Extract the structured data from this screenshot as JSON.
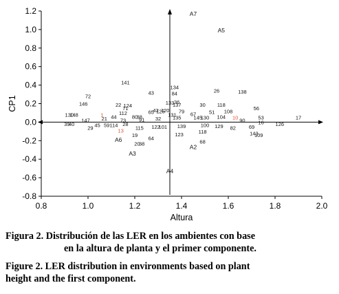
{
  "chart_data": {
    "type": "scatter",
    "xlabel": "Altura",
    "ylabel": "CP1",
    "xlim": [
      0.8,
      2.0
    ],
    "ylim": [
      -0.8,
      1.2
    ],
    "xticks": [
      "0.8",
      "1.0",
      "1.2",
      "1.4",
      "1.6",
      "1.8",
      "2.0"
    ],
    "yticks": [
      "-0.8",
      "-0.6",
      "-0.4",
      "-0.2",
      "0.0",
      "0.2",
      "0.4",
      "0.6",
      "0.8",
      "1.0",
      "1.2"
    ],
    "reference_lines": {
      "vertical_x": 1.35,
      "horizontal_y": 0.0
    },
    "highlight_color": "#e0522a",
    "environments": [
      {
        "label": "A7",
        "x": 1.45,
        "y": 1.17
      },
      {
        "label": "A5",
        "x": 1.57,
        "y": 0.99
      },
      {
        "label": "A6",
        "x": 1.13,
        "y": -0.19
      },
      {
        "label": "A3",
        "x": 1.19,
        "y": -0.34
      },
      {
        "label": "A2",
        "x": 1.45,
        "y": -0.27
      },
      {
        "label": "A4",
        "x": 1.35,
        "y": -0.53
      }
    ],
    "points": [
      {
        "label": "141",
        "x": 1.16,
        "y": 0.43
      },
      {
        "label": "134",
        "x": 1.37,
        "y": 0.38
      },
      {
        "label": "43",
        "x": 1.27,
        "y": 0.32
      },
      {
        "label": "84",
        "x": 1.37,
        "y": 0.31
      },
      {
        "label": "26",
        "x": 1.55,
        "y": 0.34
      },
      {
        "label": "138",
        "x": 1.66,
        "y": 0.33
      },
      {
        "label": "72",
        "x": 1.0,
        "y": 0.28
      },
      {
        "label": "146",
        "x": 0.98,
        "y": 0.2
      },
      {
        "label": "22",
        "x": 1.13,
        "y": 0.19
      },
      {
        "label": "124",
        "x": 1.17,
        "y": 0.18
      },
      {
        "label": "71",
        "x": 1.16,
        "y": 0.15
      },
      {
        "label": "112",
        "x": 1.15,
        "y": 0.1
      },
      {
        "label": "133",
        "x": 1.35,
        "y": 0.21
      },
      {
        "label": "36",
        "x": 1.38,
        "y": 0.22
      },
      {
        "label": "137",
        "x": 1.38,
        "y": 0.19
      },
      {
        "label": "30",
        "x": 1.49,
        "y": 0.19
      },
      {
        "label": "118",
        "x": 1.57,
        "y": 0.19
      },
      {
        "label": "56",
        "x": 1.72,
        "y": 0.15
      },
      {
        "label": "65",
        "x": 1.27,
        "y": 0.11
      },
      {
        "label": "79",
        "x": 1.4,
        "y": 0.12
      },
      {
        "label": "42",
        "x": 1.29,
        "y": 0.13
      },
      {
        "label": "120",
        "x": 1.33,
        "y": 0.13
      },
      {
        "label": "125",
        "x": 1.31,
        "y": 0.12
      },
      {
        "label": "131",
        "x": 1.36,
        "y": 0.08
      },
      {
        "label": "67",
        "x": 1.45,
        "y": 0.09
      },
      {
        "label": "51",
        "x": 1.53,
        "y": 0.11
      },
      {
        "label": "108",
        "x": 1.6,
        "y": 0.12
      },
      {
        "label": "130",
        "x": 0.92,
        "y": 0.08
      },
      {
        "label": "148",
        "x": 0.94,
        "y": 0.08
      },
      {
        "label": "21",
        "x": 1.07,
        "y": 0.04
      },
      {
        "label": "1",
        "x": 1.06,
        "y": 0.08
      },
      {
        "label": "44",
        "x": 1.11,
        "y": 0.06
      },
      {
        "label": "80",
        "x": 1.2,
        "y": 0.06
      },
      {
        "label": "38",
        "x": 1.22,
        "y": 0.06
      },
      {
        "label": "91",
        "x": 1.23,
        "y": 0.03
      },
      {
        "label": "73",
        "x": 1.15,
        "y": 0.02
      },
      {
        "label": "32",
        "x": 1.3,
        "y": 0.04
      },
      {
        "label": "135",
        "x": 1.38,
        "y": 0.05
      },
      {
        "label": "145",
        "x": 1.47,
        "y": 0.05
      },
      {
        "label": "130",
        "x": 1.5,
        "y": 0.05
      },
      {
        "label": "104",
        "x": 1.57,
        "y": 0.06
      },
      {
        "label": "10",
        "x": 1.63,
        "y": 0.05
      },
      {
        "label": "53",
        "x": 1.74,
        "y": 0.05
      },
      {
        "label": "17",
        "x": 1.9,
        "y": 0.05
      },
      {
        "label": "90",
        "x": 1.66,
        "y": 0.02
      },
      {
        "label": "16",
        "x": 1.74,
        "y": 0.0
      },
      {
        "label": "147",
        "x": 0.99,
        "y": 0.02
      },
      {
        "label": "39",
        "x": 0.91,
        "y": -0.02
      },
      {
        "label": "40",
        "x": 0.93,
        "y": -0.02
      },
      {
        "label": "45",
        "x": 1.04,
        "y": -0.03
      },
      {
        "label": "59",
        "x": 1.08,
        "y": -0.03
      },
      {
        "label": "114",
        "x": 1.11,
        "y": -0.03
      },
      {
        "label": "28",
        "x": 1.16,
        "y": -0.02
      },
      {
        "label": "29",
        "x": 1.01,
        "y": -0.06
      },
      {
        "label": "13",
        "x": 1.14,
        "y": -0.09
      },
      {
        "label": "115",
        "x": 1.22,
        "y": -0.06
      },
      {
        "label": "122",
        "x": 1.29,
        "y": -0.05
      },
      {
        "label": "101",
        "x": 1.32,
        "y": -0.05
      },
      {
        "label": "139",
        "x": 1.4,
        "y": -0.04
      },
      {
        "label": "100",
        "x": 1.5,
        "y": -0.03
      },
      {
        "label": "129",
        "x": 1.56,
        "y": -0.04
      },
      {
        "label": "82",
        "x": 1.62,
        "y": -0.06
      },
      {
        "label": "69",
        "x": 1.7,
        "y": -0.05
      },
      {
        "label": "126",
        "x": 1.82,
        "y": -0.02
      },
      {
        "label": "118",
        "x": 1.49,
        "y": -0.1
      },
      {
        "label": "143",
        "x": 1.71,
        "y": -0.12
      },
      {
        "label": "109",
        "x": 1.73,
        "y": -0.14
      },
      {
        "label": "19",
        "x": 1.2,
        "y": -0.14
      },
      {
        "label": "64",
        "x": 1.27,
        "y": -0.17
      },
      {
        "label": "123",
        "x": 1.39,
        "y": -0.13
      },
      {
        "label": "20",
        "x": 1.21,
        "y": -0.23
      },
      {
        "label": "38",
        "x": 1.23,
        "y": -0.23
      },
      {
        "label": "68",
        "x": 1.49,
        "y": -0.21
      }
    ],
    "highlighted_labels": [
      "1",
      "13",
      "10"
    ]
  },
  "caption": {
    "es_label": "Figura 2.",
    "es_line1": "Distribución de las LER en los ambientes con base",
    "es_line2": "en la altura de planta y el primer componente.",
    "en_label": "Figure 2.",
    "en_line1": "LER distribution in environments based on plant",
    "en_line2": "height and the first component."
  }
}
